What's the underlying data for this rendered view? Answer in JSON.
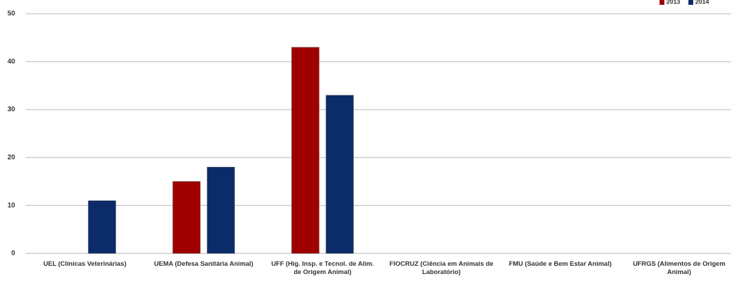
{
  "chart_data": {
    "type": "bar",
    "categories": [
      "UEL (Clínicas Veterinárias)",
      "UEMA (Defesa Sanitária Animal)",
      "UFF (Hig. Insp. e Tecnol. de Alim. de Origem Animal)",
      "FIOCRUZ (Ciência em Animais de Laboratório)",
      "FMU (Saúde e Bem Estar Animal)",
      "UFRGS (Alimentos de Origem Animal)"
    ],
    "series": [
      {
        "name": "2013",
        "color": "#a00000",
        "values": [
          0,
          15,
          43,
          0,
          0,
          0
        ]
      },
      {
        "name": "2014",
        "color": "#0b2c68",
        "values": [
          11,
          18,
          33,
          0,
          0,
          0
        ]
      }
    ],
    "ylim": [
      0,
      50
    ],
    "yticks": [
      0,
      10,
      20,
      30,
      40,
      50
    ],
    "grid": true,
    "legend": "top-right"
  }
}
